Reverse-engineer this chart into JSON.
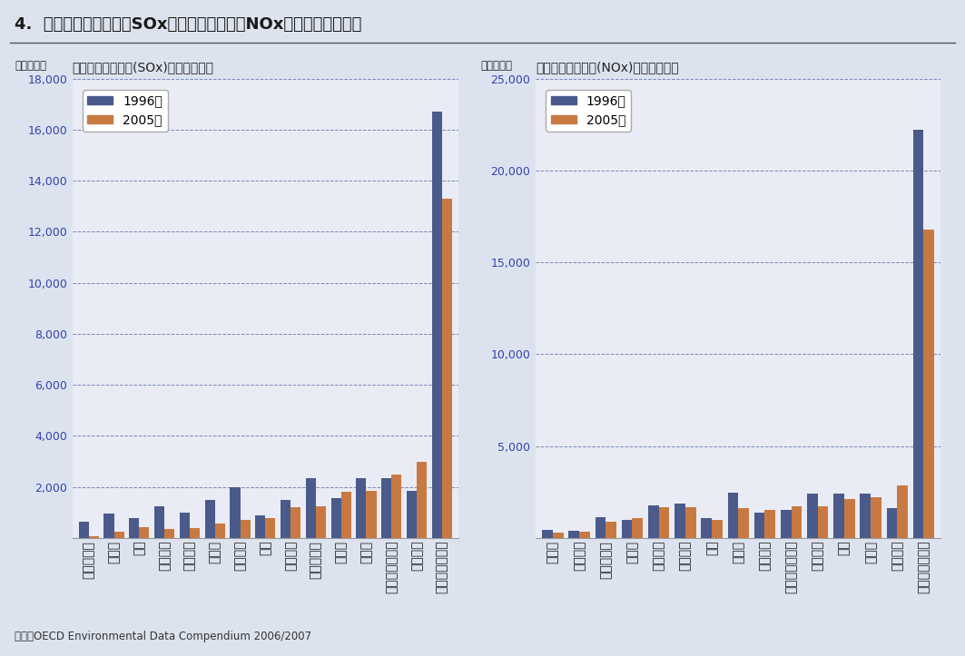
{
  "title": "4.  各国の硫黄酸化物（SOx）と窒素酸化物（NOx）の排出量の推移",
  "sox_title": "各国の硫黄酸化物(SOx)排出量の推移",
  "nox_title": "各国の窒素酸化物(NOx)排出量の推移",
  "ylabel": "（千トン）",
  "legend_1996": "1996年",
  "legend_2005": "2005年",
  "source": "資料：OECD Environmental Data Compendium 2006/2007",
  "color_1996": "#4a5a8a",
  "color_2005": "#c87941",
  "bg_color": "#dce3ef",
  "plot_bg_color": "#eaecf5",
  "sox_categories": [
    "ハンガリー",
    "チェコ",
    "韓国",
    "イタリア",
    "フランス",
    "ドイツ",
    "イギリス",
    "日本",
    "スペイン",
    "ポーランド",
    "トルコ",
    "カナダ",
    "オーストラリア",
    "メキシコ",
    "アメリカ合衆国"
  ],
  "sox_1996": [
    620,
    950,
    780,
    1250,
    1000,
    1500,
    2000,
    880,
    1500,
    2350,
    1550,
    2350,
    2350,
    1850,
    16700
  ],
  "sox_2005": [
    70,
    230,
    430,
    350,
    400,
    550,
    700,
    770,
    1200,
    1250,
    1800,
    1850,
    2500,
    3000,
    13300
  ],
  "sox_ylim": [
    0,
    18000
  ],
  "sox_yticks": [
    0,
    2000,
    4000,
    6000,
    8000,
    10000,
    12000,
    14000,
    16000,
    18000
  ],
  "nox_categories": [
    "チェコ",
    "オランダ",
    "ポーランド",
    "トルコ",
    "イタリア",
    "フランス",
    "韓国",
    "ドイツ",
    "スペイン",
    "オーストラリア",
    "イギリス",
    "日本",
    "カナダ",
    "メキシコ",
    "アメリカ合衆国"
  ],
  "nox_1996": [
    450,
    400,
    1150,
    1000,
    1750,
    1850,
    1100,
    2450,
    1400,
    1500,
    2400,
    2400,
    2400,
    1600,
    22200
  ],
  "nox_2005": [
    300,
    350,
    900,
    1100,
    1650,
    1650,
    1000,
    1600,
    1500,
    1700,
    1700,
    2100,
    2200,
    2850,
    16800
  ],
  "nox_ylim": [
    0,
    25000
  ],
  "nox_yticks": [
    0,
    5000,
    10000,
    15000,
    20000,
    25000
  ]
}
